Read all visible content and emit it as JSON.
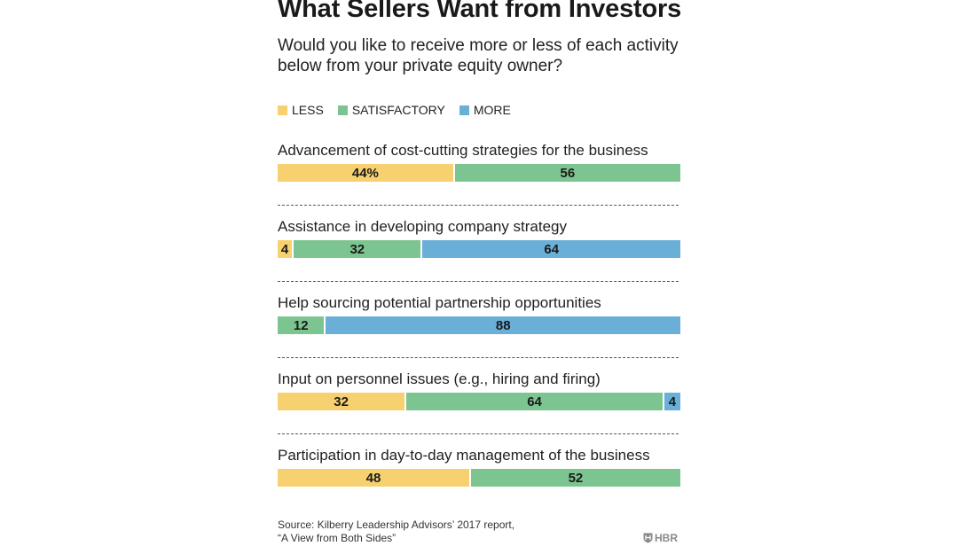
{
  "title": "What Sellers Want from Investors",
  "subtitle": "Would you like to receive more or less of each activity below from your private equity owner?",
  "colors": {
    "less": "#f7d170",
    "satisfactory": "#7dc590",
    "more": "#6aafd8"
  },
  "legend": [
    {
      "key": "less",
      "label": "LESS"
    },
    {
      "key": "satisfactory",
      "label": "SATISFACTORY"
    },
    {
      "key": "more",
      "label": "MORE"
    }
  ],
  "chart_data": {
    "type": "bar",
    "orientation": "horizontal",
    "stacked": true,
    "title": "What Sellers Want from Investors",
    "subtitle": "Would you like to receive more or less of each activity below from your private equity owner?",
    "categories": [
      "Advancement of cost-cutting strategies for the business",
      "Assistance in developing company strategy",
      "Help sourcing potential partnership opportunities",
      "Input on personnel issues (e.g., hiring and firing)",
      "Participation in day-to-day management of the business"
    ],
    "series": [
      {
        "name": "LESS",
        "key": "less",
        "values": [
          44,
          4,
          0,
          32,
          48
        ]
      },
      {
        "name": "SATISFACTORY",
        "key": "satisfactory",
        "values": [
          56,
          32,
          12,
          64,
          52
        ]
      },
      {
        "name": "MORE",
        "key": "more",
        "values": [
          0,
          64,
          88,
          4,
          0
        ]
      }
    ],
    "value_labels": [
      [
        "44%",
        "56",
        ""
      ],
      [
        "4",
        "32",
        "64"
      ],
      [
        "",
        "12",
        "88"
      ],
      [
        "32",
        "64",
        "4"
      ],
      [
        "48",
        "52",
        ""
      ]
    ],
    "xlim": [
      0,
      100
    ],
    "unit": "%"
  },
  "source": {
    "line1": "Source: Kilberry Leadership Advisors’ 2017 report,",
    "line2": "“A View from Both Sides”"
  },
  "logo": {
    "text": "HBR",
    "icon": "hbr-shield-icon"
  }
}
